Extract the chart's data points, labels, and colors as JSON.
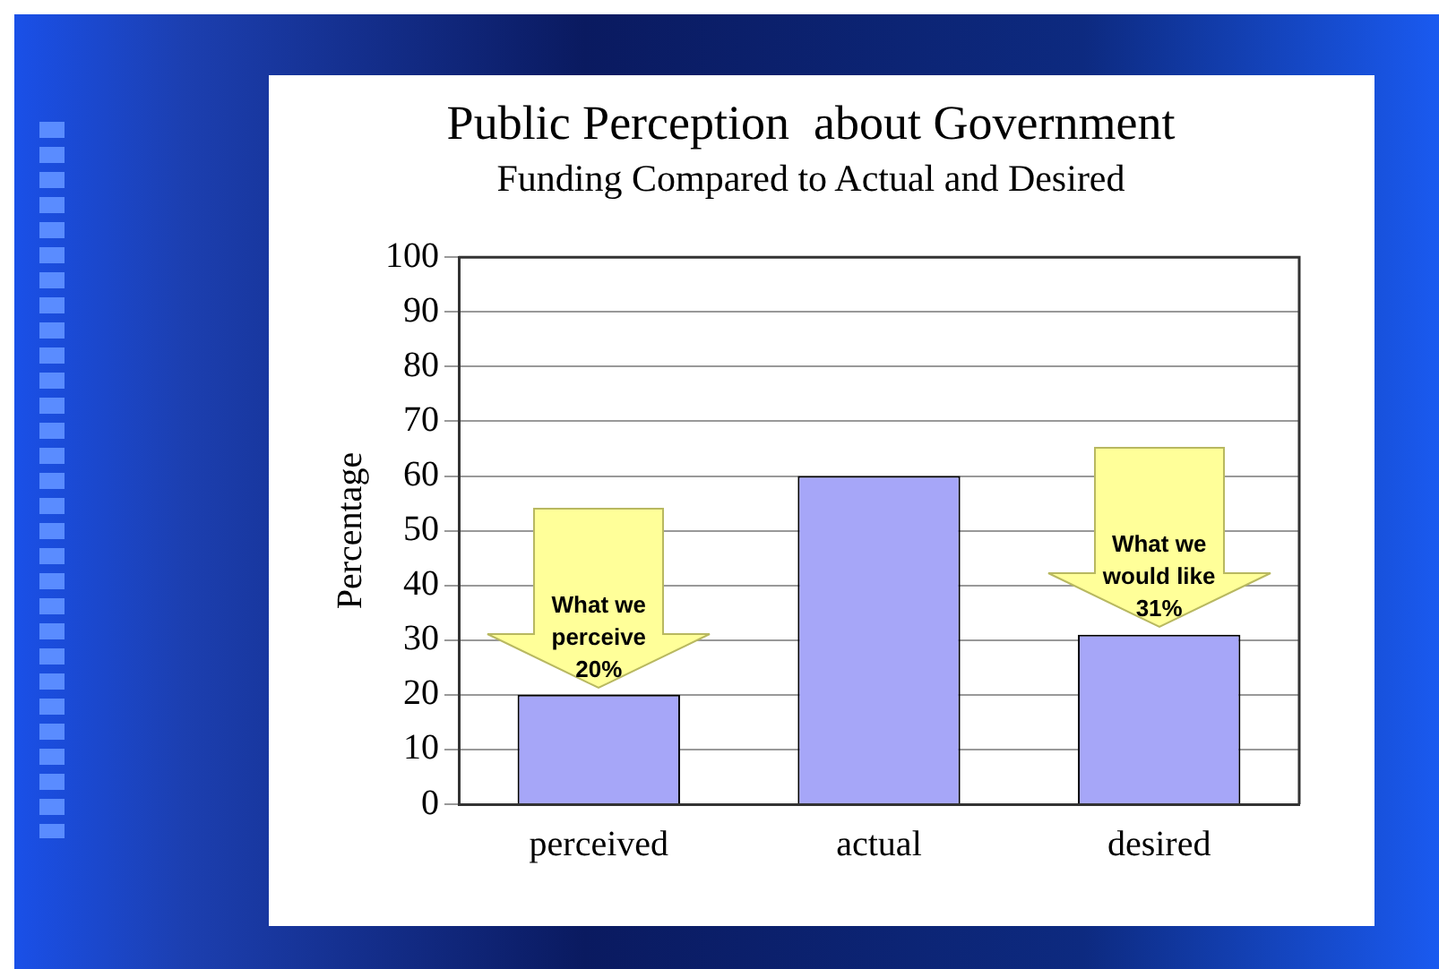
{
  "chart_data": {
    "type": "bar",
    "title": "Public Perception  about Government",
    "subtitle": "Funding Compared to Actual and Desired",
    "ylabel": "Percentage",
    "categories": [
      "perceived",
      "actual",
      "desired"
    ],
    "values": [
      20,
      60,
      31
    ],
    "color": "#a6a6f8",
    "ylim": [
      0,
      100
    ],
    "yticks": [
      0,
      10,
      20,
      30,
      40,
      50,
      60,
      70,
      80,
      90,
      100
    ],
    "grid": "y",
    "legend": false,
    "annotations": [
      {
        "text": "What we perceive 20%",
        "x": "perceived",
        "y": 20
      },
      {
        "text": "What we would like 31%",
        "x": "desired",
        "y": 31
      }
    ]
  }
}
